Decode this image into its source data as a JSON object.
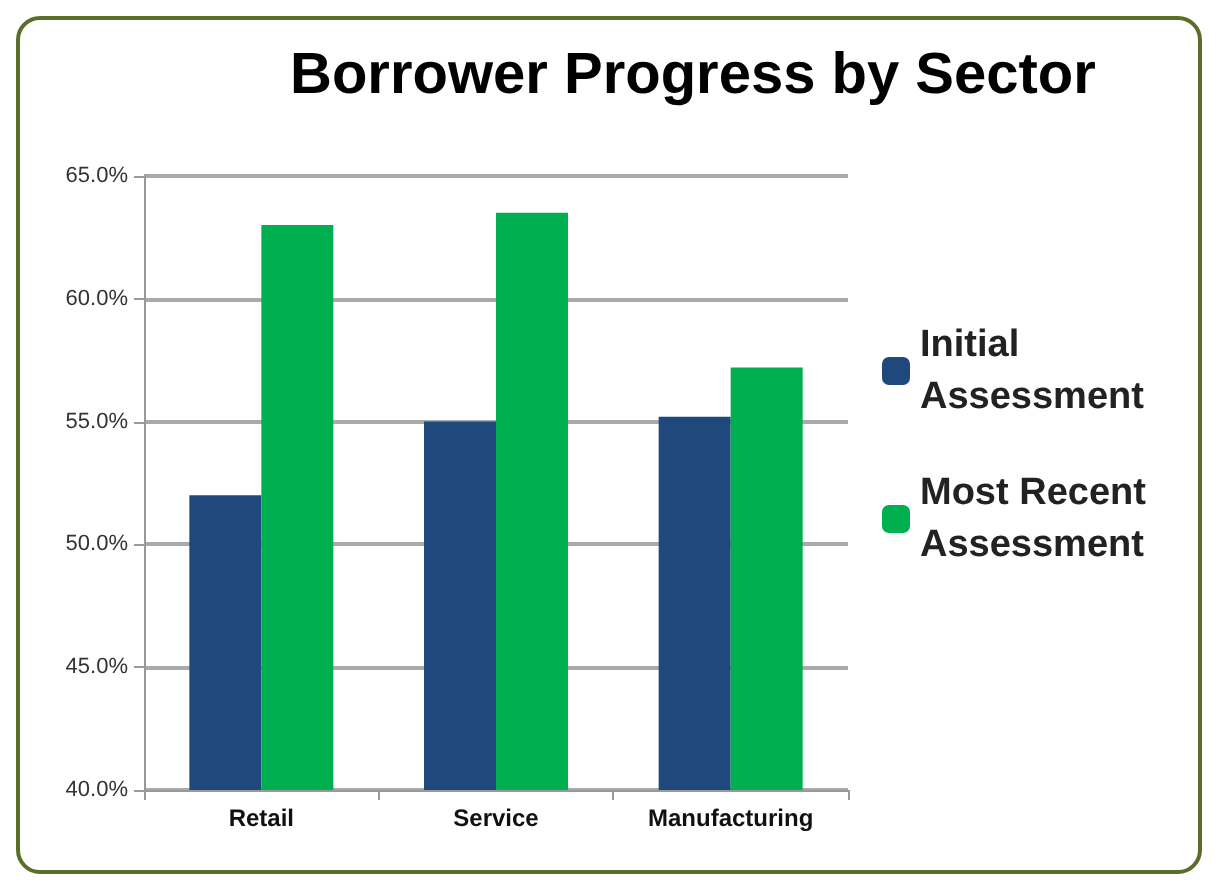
{
  "chart_data": {
    "type": "bar",
    "title": "Borrower Progress by Sector",
    "categories": [
      "Retail",
      "Service",
      "Manufacturing"
    ],
    "series": [
      {
        "name": "Initial Assessment",
        "color": "#1f497d",
        "values": [
          52,
          55,
          55.2
        ]
      },
      {
        "name": "Most Recent Assessment",
        "color": "#00b050",
        "values": [
          63,
          63.5,
          57.2
        ]
      }
    ],
    "ylim": [
      40,
      65
    ],
    "yticks": [
      {
        "value": 40,
        "label": "40.0%"
      },
      {
        "value": 45,
        "label": "45.0%"
      },
      {
        "value": 50,
        "label": "50.0%"
      },
      {
        "value": 55,
        "label": "55.0%"
      },
      {
        "value": 60,
        "label": "60.0%"
      },
      {
        "value": 65,
        "label": "65.0%"
      }
    ],
    "grid": "y",
    "legend": "right"
  }
}
